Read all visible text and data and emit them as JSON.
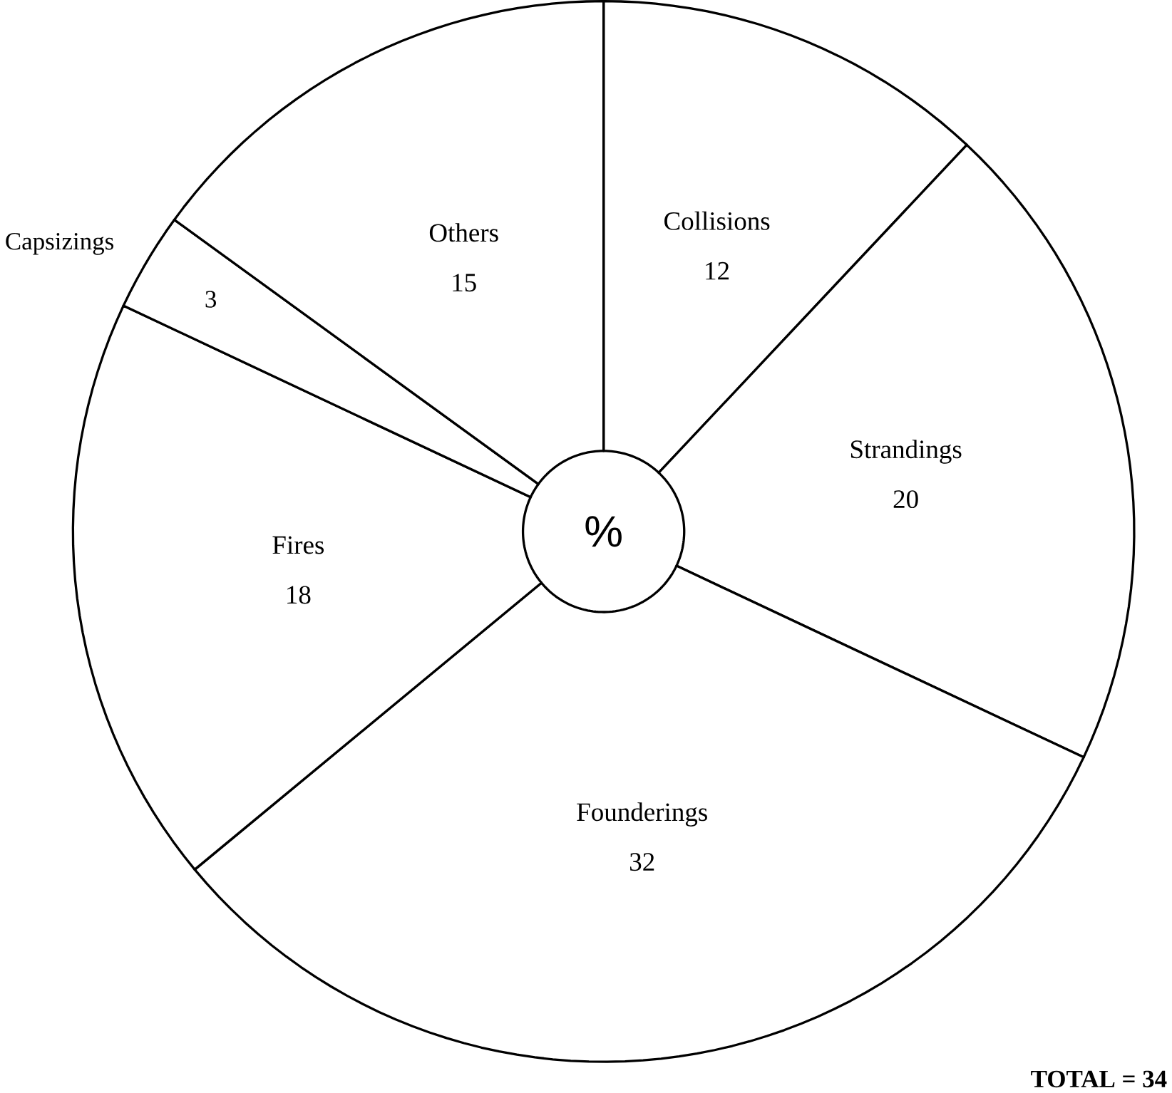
{
  "chart_data": {
    "type": "donut",
    "categories": [
      "Collisions",
      "Strandings",
      "Founderings",
      "Fires",
      "Capsizings",
      "Others"
    ],
    "values": [
      12,
      20,
      32,
      18,
      3,
      15
    ],
    "colors": [
      "#ffffff",
      "#ffffff",
      "#ffffff",
      "#ffffff",
      "#ffffff",
      "#ffffff"
    ],
    "data_labels": true,
    "annotations": [
      "%",
      "TOTAL = 34"
    ]
  }
}
